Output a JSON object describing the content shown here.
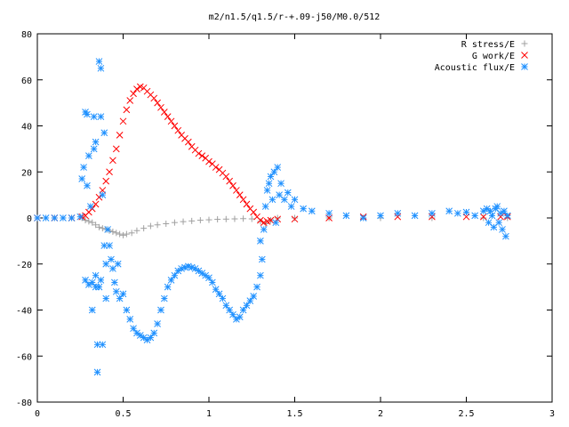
{
  "chart_data": {
    "type": "scatter",
    "title": "m2/n1.5/q1.5/r-+.09-j50/M0.0/512",
    "xlabel": "",
    "ylabel": "",
    "xlim": [
      0,
      3
    ],
    "ylim": [
      -80,
      80
    ],
    "x_ticks": [
      0,
      0.5,
      1,
      1.5,
      2,
      2.5,
      3
    ],
    "x_tick_labels": [
      "0",
      "0.5",
      "1",
      "1.5",
      "2",
      "2.5",
      "3"
    ],
    "y_ticks": [
      -80,
      -60,
      -40,
      -20,
      0,
      20,
      40,
      60,
      80
    ],
    "y_tick_labels": [
      "-80",
      "-60",
      "-40",
      "-20",
      "0",
      "20",
      "40",
      "60",
      "80"
    ],
    "grid": false,
    "legend_position": "top-right",
    "series": [
      {
        "name": "R stress/E",
        "marker": "plus",
        "color": "#a0a0a0",
        "points": [
          [
            0.0,
            0.0
          ],
          [
            0.1,
            0.0
          ],
          [
            0.2,
            0.0
          ],
          [
            0.26,
            0.0
          ],
          [
            0.28,
            -1.0
          ],
          [
            0.3,
            -1.5
          ],
          [
            0.32,
            -2.0
          ],
          [
            0.34,
            -3.0
          ],
          [
            0.36,
            -4.0
          ],
          [
            0.38,
            -4.5
          ],
          [
            0.4,
            -5.0
          ],
          [
            0.42,
            -5.5
          ],
          [
            0.44,
            -6.0
          ],
          [
            0.46,
            -6.5
          ],
          [
            0.48,
            -7.0
          ],
          [
            0.5,
            -7.5
          ],
          [
            0.52,
            -7.0
          ],
          [
            0.55,
            -6.5
          ],
          [
            0.58,
            -5.5
          ],
          [
            0.62,
            -4.5
          ],
          [
            0.66,
            -3.5
          ],
          [
            0.7,
            -3.0
          ],
          [
            0.75,
            -2.5
          ],
          [
            0.8,
            -2.0
          ],
          [
            0.85,
            -1.6
          ],
          [
            0.9,
            -1.3
          ],
          [
            0.95,
            -1.0
          ],
          [
            1.0,
            -0.8
          ],
          [
            1.05,
            -0.6
          ],
          [
            1.1,
            -0.5
          ],
          [
            1.15,
            -0.4
          ],
          [
            1.2,
            -0.3
          ],
          [
            1.25,
            -0.4
          ],
          [
            1.3,
            -1.5
          ],
          [
            1.33,
            -2.5
          ],
          [
            1.36,
            -1.0
          ],
          [
            1.4,
            0.0
          ],
          [
            1.5,
            0.0
          ],
          [
            1.7,
            0.0
          ],
          [
            2.0,
            0.0
          ],
          [
            2.3,
            0.0
          ],
          [
            2.6,
            0.0
          ],
          [
            2.74,
            0.0
          ]
        ]
      },
      {
        "name": "G work/E",
        "marker": "cross",
        "color": "#ff0000",
        "points": [
          [
            0.0,
            0.0
          ],
          [
            0.1,
            0.0
          ],
          [
            0.2,
            0.0
          ],
          [
            0.26,
            0.5
          ],
          [
            0.28,
            1.0
          ],
          [
            0.3,
            2.5
          ],
          [
            0.32,
            4.0
          ],
          [
            0.34,
            6.0
          ],
          [
            0.36,
            9.0
          ],
          [
            0.38,
            12.0
          ],
          [
            0.4,
            16.0
          ],
          [
            0.42,
            20.0
          ],
          [
            0.44,
            25.0
          ],
          [
            0.46,
            30.0
          ],
          [
            0.48,
            36.0
          ],
          [
            0.5,
            42.0
          ],
          [
            0.52,
            47.0
          ],
          [
            0.54,
            51.0
          ],
          [
            0.56,
            54.0
          ],
          [
            0.58,
            56.0
          ],
          [
            0.6,
            57.0
          ],
          [
            0.62,
            56.5
          ],
          [
            0.64,
            55.0
          ],
          [
            0.66,
            53.5
          ],
          [
            0.68,
            52.0
          ],
          [
            0.7,
            50.0
          ],
          [
            0.72,
            48.0
          ],
          [
            0.74,
            46.0
          ],
          [
            0.76,
            44.0
          ],
          [
            0.78,
            42.0
          ],
          [
            0.8,
            40.0
          ],
          [
            0.82,
            38.0
          ],
          [
            0.84,
            36.0
          ],
          [
            0.86,
            34.5
          ],
          [
            0.88,
            33.0
          ],
          [
            0.9,
            31.0
          ],
          [
            0.92,
            29.5
          ],
          [
            0.94,
            28.0
          ],
          [
            0.96,
            27.0
          ],
          [
            0.98,
            26.0
          ],
          [
            1.0,
            24.5
          ],
          [
            1.02,
            23.5
          ],
          [
            1.04,
            22.0
          ],
          [
            1.06,
            21.0
          ],
          [
            1.08,
            19.5
          ],
          [
            1.1,
            18.0
          ],
          [
            1.12,
            16.0
          ],
          [
            1.14,
            14.0
          ],
          [
            1.16,
            12.0
          ],
          [
            1.18,
            10.0
          ],
          [
            1.2,
            8.0
          ],
          [
            1.22,
            6.0
          ],
          [
            1.24,
            4.0
          ],
          [
            1.26,
            2.5
          ],
          [
            1.28,
            0.5
          ],
          [
            1.3,
            -1.0
          ],
          [
            1.32,
            -2.0
          ],
          [
            1.34,
            -1.5
          ],
          [
            1.36,
            -1.0
          ],
          [
            1.4,
            -0.5
          ],
          [
            1.5,
            -0.5
          ],
          [
            1.7,
            0.0
          ],
          [
            1.9,
            0.5
          ],
          [
            2.1,
            0.5
          ],
          [
            2.3,
            0.5
          ],
          [
            2.5,
            0.5
          ],
          [
            2.6,
            0.5
          ],
          [
            2.7,
            0.5
          ],
          [
            2.74,
            0.5
          ]
        ]
      },
      {
        "name": "Acoustic flux/E",
        "marker": "star",
        "color": "#1e90ff",
        "points": [
          [
            0.0,
            0.0
          ],
          [
            0.05,
            0.0
          ],
          [
            0.1,
            0.0
          ],
          [
            0.15,
            0.0
          ],
          [
            0.2,
            0.0
          ],
          [
            0.25,
            0.5
          ],
          [
            0.26,
            17.0
          ],
          [
            0.27,
            22.0
          ],
          [
            0.28,
            -27.0
          ],
          [
            0.28,
            46.0
          ],
          [
            0.29,
            14.0
          ],
          [
            0.29,
            45.0
          ],
          [
            0.3,
            27.0
          ],
          [
            0.3,
            -29.0
          ],
          [
            0.31,
            5.0
          ],
          [
            0.32,
            -40.0
          ],
          [
            0.32,
            -28.0
          ],
          [
            0.33,
            44.0
          ],
          [
            0.33,
            30.0
          ],
          [
            0.34,
            -25.0
          ],
          [
            0.34,
            -30.0
          ],
          [
            0.34,
            33.0
          ],
          [
            0.35,
            -55.0
          ],
          [
            0.35,
            -67.0
          ],
          [
            0.36,
            68.0
          ],
          [
            0.36,
            -30.0
          ],
          [
            0.37,
            65.0
          ],
          [
            0.37,
            44.0
          ],
          [
            0.37,
            -27.0
          ],
          [
            0.38,
            -55.0
          ],
          [
            0.38,
            10.0
          ],
          [
            0.39,
            37.0
          ],
          [
            0.39,
            -12.0
          ],
          [
            0.4,
            -20.0
          ],
          [
            0.4,
            -35.0
          ],
          [
            0.41,
            -5.0
          ],
          [
            0.42,
            -12.0
          ],
          [
            0.43,
            -18.0
          ],
          [
            0.44,
            -22.0
          ],
          [
            0.45,
            -28.0
          ],
          [
            0.46,
            -32.0
          ],
          [
            0.47,
            -20.0
          ],
          [
            0.48,
            -35.0
          ],
          [
            0.5,
            -33.0
          ],
          [
            0.52,
            -40.0
          ],
          [
            0.54,
            -44.0
          ],
          [
            0.56,
            -48.0
          ],
          [
            0.58,
            -50.0
          ],
          [
            0.6,
            -51.0
          ],
          [
            0.62,
            -52.0
          ],
          [
            0.64,
            -53.0
          ],
          [
            0.66,
            -52.0
          ],
          [
            0.68,
            -50.0
          ],
          [
            0.7,
            -46.0
          ],
          [
            0.72,
            -40.0
          ],
          [
            0.74,
            -35.0
          ],
          [
            0.76,
            -30.0
          ],
          [
            0.78,
            -27.0
          ],
          [
            0.8,
            -25.0
          ],
          [
            0.82,
            -23.0
          ],
          [
            0.84,
            -22.0
          ],
          [
            0.86,
            -21.5
          ],
          [
            0.88,
            -21.0
          ],
          [
            0.9,
            -21.5
          ],
          [
            0.92,
            -22.0
          ],
          [
            0.94,
            -23.0
          ],
          [
            0.96,
            -24.0
          ],
          [
            0.98,
            -25.0
          ],
          [
            1.0,
            -26.0
          ],
          [
            1.02,
            -28.0
          ],
          [
            1.04,
            -31.0
          ],
          [
            1.06,
            -33.0
          ],
          [
            1.08,
            -35.0
          ],
          [
            1.1,
            -38.0
          ],
          [
            1.12,
            -40.0
          ],
          [
            1.14,
            -42.0
          ],
          [
            1.16,
            -44.0
          ],
          [
            1.18,
            -43.0
          ],
          [
            1.2,
            -40.0
          ],
          [
            1.22,
            -38.0
          ],
          [
            1.24,
            -36.0
          ],
          [
            1.26,
            -34.0
          ],
          [
            1.28,
            -30.0
          ],
          [
            1.3,
            -25.0
          ],
          [
            1.3,
            -10.0
          ],
          [
            1.31,
            -18.0
          ],
          [
            1.32,
            -5.0
          ],
          [
            1.33,
            5.0
          ],
          [
            1.34,
            12.0
          ],
          [
            1.35,
            15.0
          ],
          [
            1.36,
            18.0
          ],
          [
            1.37,
            8.0
          ],
          [
            1.38,
            20.0
          ],
          [
            1.39,
            -2.0
          ],
          [
            1.4,
            22.0
          ],
          [
            1.41,
            10.0
          ],
          [
            1.42,
            15.0
          ],
          [
            1.44,
            8.0
          ],
          [
            1.46,
            11.0
          ],
          [
            1.48,
            5.0
          ],
          [
            1.5,
            8.0
          ],
          [
            1.55,
            4.0
          ],
          [
            1.6,
            3.0
          ],
          [
            1.7,
            2.0
          ],
          [
            1.8,
            1.0
          ],
          [
            1.9,
            0.0
          ],
          [
            2.0,
            1.0
          ],
          [
            2.1,
            2.0
          ],
          [
            2.2,
            1.0
          ],
          [
            2.3,
            2.0
          ],
          [
            2.4,
            3.0
          ],
          [
            2.45,
            2.0
          ],
          [
            2.5,
            2.5
          ],
          [
            2.55,
            1.0
          ],
          [
            2.6,
            3.0
          ],
          [
            2.62,
            4.0
          ],
          [
            2.63,
            -2.0
          ],
          [
            2.64,
            3.0
          ],
          [
            2.65,
            1.0
          ],
          [
            2.66,
            -4.0
          ],
          [
            2.67,
            4.0
          ],
          [
            2.68,
            5.0
          ],
          [
            2.69,
            -2.0
          ],
          [
            2.7,
            2.0
          ],
          [
            2.71,
            -5.0
          ],
          [
            2.72,
            3.0
          ],
          [
            2.73,
            -8.0
          ],
          [
            2.74,
            1.0
          ]
        ]
      }
    ]
  }
}
